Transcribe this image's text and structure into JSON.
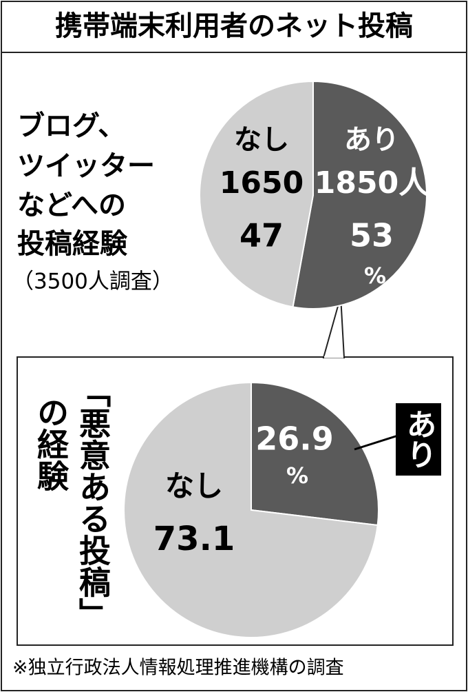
{
  "title": "携帯端末利用者のネット投稿",
  "source": "※独立行政法人情報処理推進機構の調査",
  "chart_data": [
    {
      "type": "pie",
      "label_lines": [
        "ブログ、",
        "ツイッター",
        "などへの",
        "投稿経験"
      ],
      "subtitle": "（3500人調査）",
      "categories": [
        "あり",
        "なし"
      ],
      "values": [
        1850,
        1650
      ],
      "value_labels": [
        "1850人",
        "1650"
      ],
      "percents": [
        53,
        47
      ],
      "unit": "%",
      "colors": [
        "#5a5a5a",
        "#cfcfcf"
      ]
    },
    {
      "type": "pie",
      "label_lines": [
        "「悪意ある投稿」",
        "の経験"
      ],
      "categories": [
        "あり",
        "なし"
      ],
      "values": [
        26.9,
        73.1
      ],
      "unit": "%",
      "colors": [
        "#5a5a5a",
        "#cfcfcf"
      ]
    }
  ]
}
